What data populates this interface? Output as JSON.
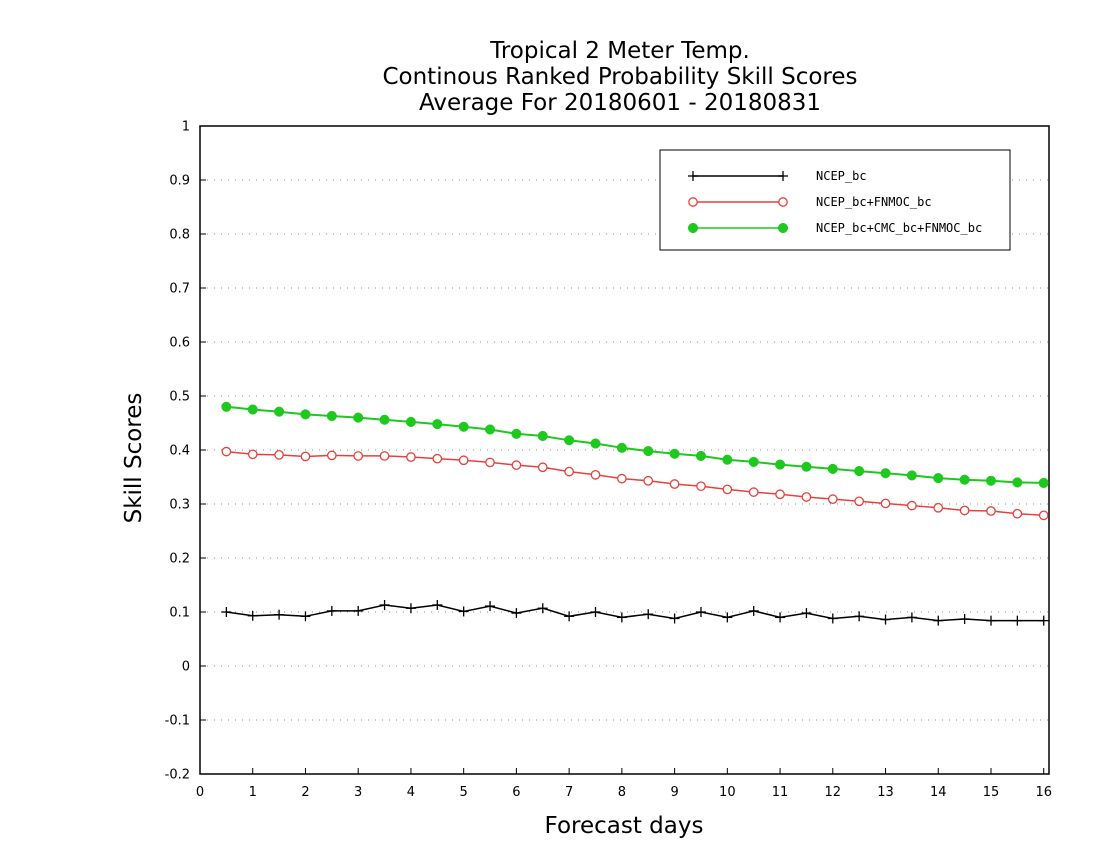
{
  "chart_data": {
    "type": "line",
    "title_lines": [
      "Tropical 2 Meter Temp.",
      "Continous Ranked Probability Skill Scores",
      "Average For 20180601 - 20180831"
    ],
    "xlabel": "Forecast days",
    "ylabel": "Skill Scores",
    "xlim": [
      0,
      16.1
    ],
    "ylim": [
      -0.2,
      1
    ],
    "x_ticks": [
      0,
      1,
      2,
      3,
      4,
      5,
      6,
      7,
      8,
      9,
      10,
      11,
      12,
      13,
      14,
      15,
      16
    ],
    "y_ticks": [
      -0.2,
      -0.1,
      0,
      0.1,
      0.2,
      0.3,
      0.4,
      0.5,
      0.6,
      0.7,
      0.8,
      0.9,
      1
    ],
    "y_tick_labels": [
      "-0.2",
      "-0.1",
      "0",
      "0.1",
      "0.2",
      "0.3",
      "0.4",
      "0.5",
      "0.6",
      "0.7",
      "0.8",
      "0.9",
      "1"
    ],
    "grid": "horizontal-dotted",
    "legend_position": "top-right",
    "x": [
      0.5,
      1.0,
      1.5,
      2.0,
      2.5,
      3.0,
      3.5,
      4.0,
      4.5,
      5.0,
      5.5,
      6.0,
      6.5,
      7.0,
      7.5,
      8.0,
      8.5,
      9.0,
      9.5,
      10.0,
      10.5,
      11.0,
      11.5,
      12.0,
      12.5,
      13.0,
      13.5,
      14.0,
      14.5,
      15.0,
      15.5,
      16.0
    ],
    "series": [
      {
        "name": "NCEP_bc",
        "color": "#000000",
        "marker": "plus",
        "values": [
          0.1,
          0.093,
          0.095,
          0.092,
          0.102,
          0.102,
          0.113,
          0.107,
          0.113,
          0.101,
          0.111,
          0.098,
          0.107,
          0.092,
          0.1,
          0.09,
          0.096,
          0.088,
          0.1,
          0.09,
          0.102,
          0.09,
          0.098,
          0.088,
          0.092,
          0.086,
          0.09,
          0.084,
          0.087,
          0.084,
          0.084,
          0.084
        ]
      },
      {
        "name": "NCEP_bc+FNMOC_bc",
        "color": "#e8403c",
        "marker": "open-circle",
        "values": [
          0.397,
          0.392,
          0.391,
          0.388,
          0.39,
          0.389,
          0.389,
          0.387,
          0.384,
          0.381,
          0.377,
          0.372,
          0.368,
          0.36,
          0.354,
          0.347,
          0.343,
          0.337,
          0.333,
          0.327,
          0.322,
          0.318,
          0.313,
          0.309,
          0.305,
          0.301,
          0.297,
          0.293,
          0.288,
          0.287,
          0.282,
          0.279
        ]
      },
      {
        "name": "NCEP_bc+CMC_bc+FNMOC_bc",
        "color": "#1ec81e",
        "marker": "filled-circle",
        "values": [
          0.48,
          0.475,
          0.471,
          0.466,
          0.463,
          0.46,
          0.456,
          0.452,
          0.448,
          0.443,
          0.438,
          0.43,
          0.426,
          0.418,
          0.412,
          0.404,
          0.398,
          0.393,
          0.389,
          0.382,
          0.378,
          0.373,
          0.369,
          0.365,
          0.361,
          0.357,
          0.353,
          0.348,
          0.345,
          0.343,
          0.34,
          0.339
        ]
      }
    ]
  }
}
